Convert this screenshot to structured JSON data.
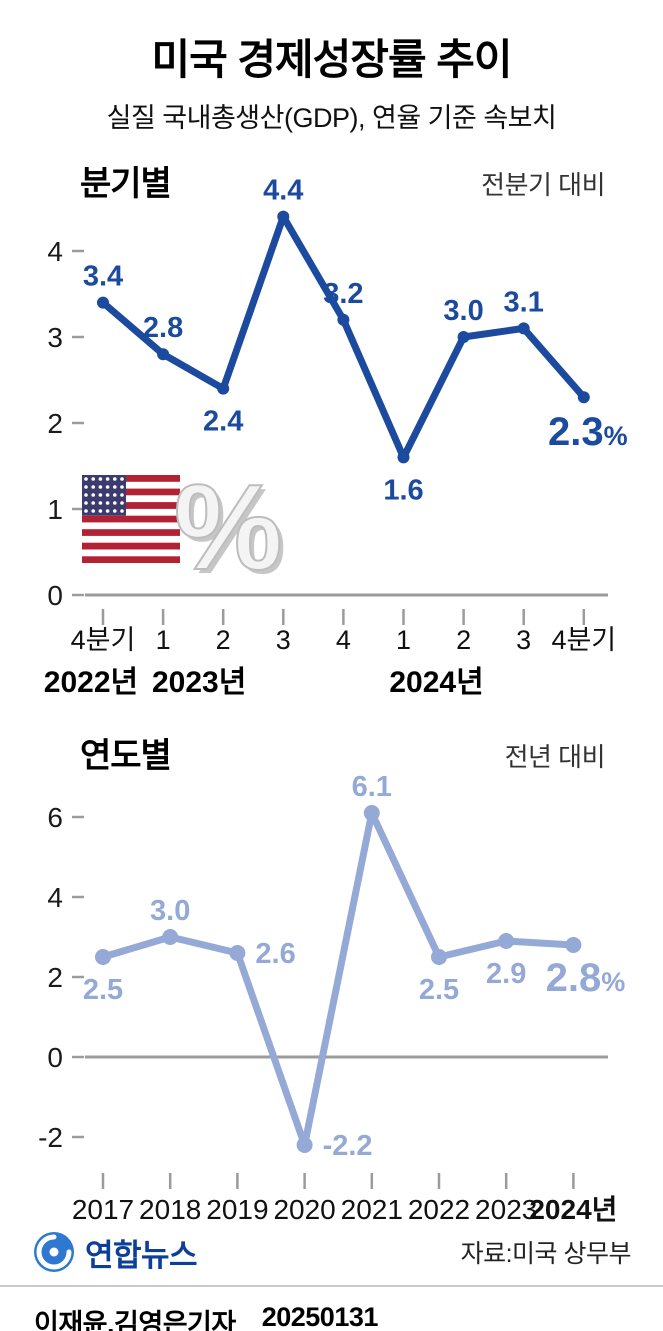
{
  "header": {
    "title": "미국 경제성장률 추이",
    "subtitle": "실질 국내총생산(GDP), 연율 기준 속보치"
  },
  "chart_data": [
    {
      "type": "line",
      "id": "quarterly",
      "section_label": "분기별",
      "comparison_label": "전분기 대비",
      "categories": [
        "4분기",
        "1",
        "2",
        "3",
        "4",
        "1",
        "2",
        "3",
        "4분기"
      ],
      "values": [
        3.4,
        2.8,
        2.4,
        4.4,
        3.2,
        1.6,
        3.0,
        3.1,
        2.3
      ],
      "unit_suffix_on_last": "%",
      "label_positions": [
        "above",
        "above",
        "below",
        "above",
        "above",
        "below",
        "above",
        "above",
        "below"
      ],
      "year_labels": [
        {
          "text": "2022년",
          "cat": -0.2
        },
        {
          "text": "2023년",
          "cat": 1.6
        },
        {
          "text": "2024년",
          "cat": 5.55
        }
      ],
      "yticks": [
        0,
        1,
        2,
        3,
        4
      ],
      "ylim": [
        0,
        4.6
      ],
      "grid": false,
      "legend": false,
      "line_color": "#1b4a9e",
      "label_color": "#1b4a9e"
    },
    {
      "type": "line",
      "id": "yearly",
      "section_label": "연도별",
      "comparison_label": "전년 대비",
      "categories": [
        "2017",
        "2018",
        "2019",
        "2020",
        "2021",
        "2022",
        "2023",
        "2024년"
      ],
      "values": [
        2.5,
        3.0,
        2.6,
        -2.2,
        6.1,
        2.5,
        2.9,
        2.8
      ],
      "unit_suffix_on_last": "%",
      "label_positions": [
        "below",
        "above",
        "right",
        "right",
        "above",
        "below",
        "below",
        "below"
      ],
      "yticks": [
        -2,
        0,
        2,
        4,
        6
      ],
      "ylim": [
        -2.8,
        6.8
      ],
      "grid": false,
      "legend": false,
      "last_category_bold": true,
      "line_color": "#94a9d5",
      "label_color": "#94a9d5"
    }
  ],
  "flag_graphic": {
    "icon": "us-flag",
    "percent_symbol": "%"
  },
  "footer": {
    "logo_icon": "yonhap-logo",
    "agency": "연합뉴스",
    "source": "자료:미국 상무부"
  },
  "byline": {
    "authors": "이재윤.김영은기자",
    "date": "20250131"
  }
}
